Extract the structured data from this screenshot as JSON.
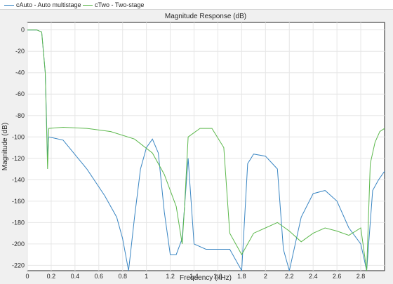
{
  "legend": {
    "items": [
      {
        "label": "cAuto - Auto multistage",
        "color": "#3a86c3"
      },
      {
        "label": "cTwo - Two-stage",
        "color": "#5cb84c"
      }
    ]
  },
  "chart_data": {
    "type": "line",
    "title": "Magnitude Response (dB)",
    "xlabel": "Frequency (kHz)",
    "ylabel": "Magnitude (dB)",
    "xlim": [
      0,
      3.0
    ],
    "ylim": [
      -225,
      7
    ],
    "xticks": [
      0,
      0.2,
      0.4,
      0.6,
      0.8,
      1,
      1.2,
      1.4,
      1.6,
      1.8,
      2,
      2.2,
      2.4,
      2.6,
      2.8
    ],
    "yticks": [
      0,
      -20,
      -40,
      -60,
      -80,
      -100,
      -120,
      -140,
      -160,
      -180,
      -200,
      -220
    ],
    "grid": true,
    "series": [
      {
        "name": "cAuto - Auto multistage",
        "color": "#3a86c3",
        "points": [
          [
            0,
            0
          ],
          [
            0.08,
            0
          ],
          [
            0.12,
            -2
          ],
          [
            0.15,
            -40
          ],
          [
            0.17,
            -120
          ],
          [
            0.18,
            -100
          ],
          [
            0.3,
            -103
          ],
          [
            0.5,
            -130
          ],
          [
            0.65,
            -155
          ],
          [
            0.75,
            -175
          ],
          [
            0.8,
            -195
          ],
          [
            0.85,
            -225
          ],
          [
            0.9,
            -175
          ],
          [
            0.95,
            -130
          ],
          [
            1.0,
            -110
          ],
          [
            1.05,
            -102
          ],
          [
            1.1,
            -115
          ],
          [
            1.15,
            -170
          ],
          [
            1.2,
            -210
          ],
          [
            1.25,
            -210
          ],
          [
            1.3,
            -195
          ],
          [
            1.35,
            -120
          ],
          [
            1.4,
            -200
          ],
          [
            1.5,
            -205
          ],
          [
            1.7,
            -205
          ],
          [
            1.8,
            -225
          ],
          [
            1.85,
            -125
          ],
          [
            1.9,
            -116
          ],
          [
            2.0,
            -118
          ],
          [
            2.1,
            -130
          ],
          [
            2.15,
            -205
          ],
          [
            2.2,
            -225
          ],
          [
            2.3,
            -175
          ],
          [
            2.4,
            -153
          ],
          [
            2.5,
            -150
          ],
          [
            2.6,
            -160
          ],
          [
            2.7,
            -185
          ],
          [
            2.8,
            -200
          ],
          [
            2.85,
            -225
          ],
          [
            2.9,
            -150
          ],
          [
            2.95,
            -140
          ],
          [
            3.0,
            -132
          ]
        ]
      },
      {
        "name": "cTwo - Two-stage",
        "color": "#5cb84c",
        "points": [
          [
            0,
            0
          ],
          [
            0.08,
            0
          ],
          [
            0.12,
            -2
          ],
          [
            0.15,
            -40
          ],
          [
            0.17,
            -130
          ],
          [
            0.18,
            -92
          ],
          [
            0.3,
            -91
          ],
          [
            0.5,
            -92
          ],
          [
            0.7,
            -95
          ],
          [
            0.9,
            -102
          ],
          [
            1.05,
            -115
          ],
          [
            1.15,
            -135
          ],
          [
            1.25,
            -165
          ],
          [
            1.3,
            -200
          ],
          [
            1.32,
            -165
          ],
          [
            1.35,
            -100
          ],
          [
            1.45,
            -92
          ],
          [
            1.55,
            -92
          ],
          [
            1.65,
            -110
          ],
          [
            1.7,
            -190
          ],
          [
            1.8,
            -210
          ],
          [
            1.9,
            -190
          ],
          [
            2.0,
            -185
          ],
          [
            2.1,
            -180
          ],
          [
            2.2,
            -188
          ],
          [
            2.3,
            -198
          ],
          [
            2.4,
            -190
          ],
          [
            2.5,
            -185
          ],
          [
            2.6,
            -188
          ],
          [
            2.7,
            -192
          ],
          [
            2.8,
            -185
          ],
          [
            2.85,
            -225
          ],
          [
            2.88,
            -125
          ],
          [
            2.92,
            -105
          ],
          [
            2.96,
            -95
          ],
          [
            3.0,
            -92
          ]
        ]
      }
    ]
  }
}
